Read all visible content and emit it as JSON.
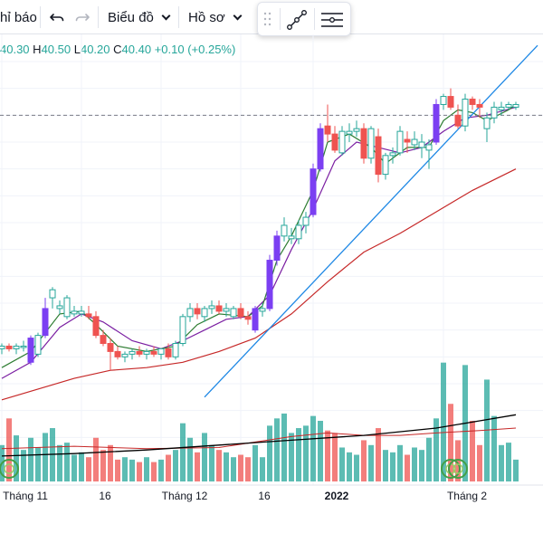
{
  "toolbar": {
    "indicators_label": "hỉ báo",
    "chart_type_label": "Biểu đồ",
    "profile_label": "Hồ sơ"
  },
  "legend": {
    "open_key": "",
    "open": "40.30",
    "high_key": "H",
    "high": "40.50",
    "low_key": "L",
    "low": "40.20",
    "close_key": "C",
    "close": "40.40",
    "change": "+0.10 (+0.25%)"
  },
  "icons": [
    "undo-icon",
    "redo-icon",
    "chevron-down-icon",
    "drag-handle-icon",
    "trend-line-icon",
    "horizontal-lines-icon"
  ],
  "colors": {
    "up": "#26a69a",
    "down": "#ef5350",
    "marked": "#7b3ff2",
    "ma_fast": "#2e7d32",
    "ma_mid": "#7b1fa2",
    "ma_slow": "#c62828",
    "ma_long": "#000000",
    "trendline": "#1e88e5",
    "price_line": "#787b86",
    "volume_ma": "#c62828"
  },
  "chart_data": {
    "type": "candlestick",
    "price_scale": {
      "min": 27,
      "max": 42
    },
    "volume_scale": {
      "min": 0,
      "max": 100
    },
    "x_tick_labels": [
      {
        "index": 0,
        "label": "Tháng 11",
        "bold": false
      },
      {
        "index": 11,
        "label": "16",
        "bold": false
      },
      {
        "index": 22,
        "label": "Tháng 12",
        "bold": false
      },
      {
        "index": 33,
        "label": "16",
        "bold": false
      },
      {
        "index": 43,
        "label": "2022",
        "bold": true
      },
      {
        "index": 61,
        "label": "Tháng 2",
        "bold": false
      }
    ],
    "candles": [
      {
        "o": 31.3,
        "h": 31.5,
        "l": 31.1,
        "c": 31.4,
        "v": 30,
        "m": false
      },
      {
        "o": 31.4,
        "h": 31.5,
        "l": 31.2,
        "c": 31.3,
        "v": 52,
        "m": false
      },
      {
        "o": 31.3,
        "h": 31.5,
        "l": 31.1,
        "c": 31.4,
        "v": 38,
        "m": false
      },
      {
        "o": 31.4,
        "h": 31.6,
        "l": 31.2,
        "c": 31.4,
        "v": 26,
        "m": false
      },
      {
        "o": 30.8,
        "h": 31.8,
        "l": 30.7,
        "c": 31.7,
        "v": 36,
        "m": true
      },
      {
        "o": 31.1,
        "h": 31.9,
        "l": 31.0,
        "c": 31.8,
        "v": 28,
        "m": false
      },
      {
        "o": 31.8,
        "h": 33.2,
        "l": 31.7,
        "c": 32.8,
        "v": 40,
        "m": true
      },
      {
        "o": 33.2,
        "h": 33.6,
        "l": 32.8,
        "c": 33.5,
        "v": 44,
        "m": false
      },
      {
        "o": 32.8,
        "h": 33.1,
        "l": 32.6,
        "c": 32.9,
        "v": 30,
        "m": false
      },
      {
        "o": 32.5,
        "h": 33.3,
        "l": 32.4,
        "c": 33.2,
        "v": 32,
        "m": false
      },
      {
        "o": 32.6,
        "h": 32.9,
        "l": 32.5,
        "c": 32.7,
        "v": 22,
        "m": false
      },
      {
        "o": 32.6,
        "h": 32.9,
        "l": 32.5,
        "c": 32.7,
        "v": 24,
        "m": false
      },
      {
        "o": 32.6,
        "h": 32.9,
        "l": 32.4,
        "c": 32.5,
        "v": 20,
        "m": false
      },
      {
        "o": 32.5,
        "h": 32.7,
        "l": 31.7,
        "c": 31.8,
        "v": 36,
        "m": false
      },
      {
        "o": 31.8,
        "h": 32.0,
        "l": 31.4,
        "c": 31.5,
        "v": 26,
        "m": false
      },
      {
        "o": 31.5,
        "h": 31.7,
        "l": 30.5,
        "c": 31.2,
        "v": 30,
        "m": false
      },
      {
        "o": 31.2,
        "h": 31.4,
        "l": 30.9,
        "c": 31.0,
        "v": 18,
        "m": false
      },
      {
        "o": 31.0,
        "h": 31.2,
        "l": 30.8,
        "c": 31.1,
        "v": 20,
        "m": false
      },
      {
        "o": 31.1,
        "h": 31.3,
        "l": 30.9,
        "c": 31.2,
        "v": 18,
        "m": false
      },
      {
        "o": 31.2,
        "h": 31.4,
        "l": 31.0,
        "c": 31.1,
        "v": 16,
        "m": false
      },
      {
        "o": 31.1,
        "h": 31.3,
        "l": 30.9,
        "c": 31.2,
        "v": 20,
        "m": false
      },
      {
        "o": 31.2,
        "h": 31.4,
        "l": 31.0,
        "c": 31.1,
        "v": 16,
        "m": false
      },
      {
        "o": 31.1,
        "h": 31.3,
        "l": 30.9,
        "c": 31.3,
        "v": 18,
        "m": false
      },
      {
        "o": 31.3,
        "h": 31.5,
        "l": 30.9,
        "c": 31.0,
        "v": 22,
        "m": false
      },
      {
        "o": 31.0,
        "h": 31.6,
        "l": 30.9,
        "c": 31.5,
        "v": 26,
        "m": false
      },
      {
        "o": 31.5,
        "h": 32.6,
        "l": 31.4,
        "c": 32.5,
        "v": 48,
        "m": false
      },
      {
        "o": 32.5,
        "h": 33.0,
        "l": 32.3,
        "c": 32.8,
        "v": 36,
        "m": false
      },
      {
        "o": 32.8,
        "h": 33.0,
        "l": 32.4,
        "c": 32.6,
        "v": 24,
        "m": false
      },
      {
        "o": 32.5,
        "h": 32.9,
        "l": 32.3,
        "c": 32.8,
        "v": 40,
        "m": false
      },
      {
        "o": 32.8,
        "h": 33.1,
        "l": 32.6,
        "c": 32.9,
        "v": 30,
        "m": false
      },
      {
        "o": 32.9,
        "h": 33.1,
        "l": 32.6,
        "c": 32.7,
        "v": 26,
        "m": false
      },
      {
        "o": 32.7,
        "h": 33.0,
        "l": 32.5,
        "c": 32.8,
        "v": 24,
        "m": false
      },
      {
        "o": 32.5,
        "h": 32.9,
        "l": 32.4,
        "c": 32.8,
        "v": 20,
        "m": false
      },
      {
        "o": 32.8,
        "h": 33.0,
        "l": 32.4,
        "c": 32.5,
        "v": 22,
        "m": false
      },
      {
        "o": 32.5,
        "h": 32.7,
        "l": 32.2,
        "c": 32.4,
        "v": 20,
        "m": false
      },
      {
        "o": 32.0,
        "h": 32.9,
        "l": 31.9,
        "c": 32.8,
        "v": 30,
        "m": true
      },
      {
        "o": 32.7,
        "h": 33.0,
        "l": 32.5,
        "c": 32.8,
        "v": 20,
        "m": false
      },
      {
        "o": 32.8,
        "h": 34.8,
        "l": 32.7,
        "c": 34.6,
        "v": 46,
        "m": true
      },
      {
        "o": 34.6,
        "h": 35.7,
        "l": 34.4,
        "c": 35.5,
        "v": 52,
        "m": true
      },
      {
        "o": 35.5,
        "h": 36.2,
        "l": 35.3,
        "c": 35.9,
        "v": 56,
        "m": false
      },
      {
        "o": 35.4,
        "h": 35.8,
        "l": 35.2,
        "c": 35.5,
        "v": 40,
        "m": false
      },
      {
        "o": 35.4,
        "h": 36.1,
        "l": 35.2,
        "c": 35.9,
        "v": 44,
        "m": false
      },
      {
        "o": 35.9,
        "h": 36.4,
        "l": 35.6,
        "c": 36.2,
        "v": 46,
        "m": false
      },
      {
        "o": 36.3,
        "h": 38.2,
        "l": 36.2,
        "c": 38.0,
        "v": 54,
        "m": true
      },
      {
        "o": 38.0,
        "h": 39.7,
        "l": 37.9,
        "c": 39.5,
        "v": 50,
        "m": true
      },
      {
        "o": 39.6,
        "h": 40.4,
        "l": 39.0,
        "c": 39.3,
        "v": 42,
        "m": false
      },
      {
        "o": 39.3,
        "h": 39.6,
        "l": 38.6,
        "c": 38.7,
        "v": 40,
        "m": false
      },
      {
        "o": 38.6,
        "h": 39.6,
        "l": 38.5,
        "c": 39.4,
        "v": 28,
        "m": false
      },
      {
        "o": 39.3,
        "h": 39.7,
        "l": 39.0,
        "c": 39.4,
        "v": 24,
        "m": false
      },
      {
        "o": 39.4,
        "h": 39.8,
        "l": 39.2,
        "c": 39.5,
        "v": 22,
        "m": false
      },
      {
        "o": 39.5,
        "h": 39.7,
        "l": 38.2,
        "c": 38.4,
        "v": 34,
        "m": false
      },
      {
        "o": 38.4,
        "h": 39.6,
        "l": 38.2,
        "c": 39.5,
        "v": 30,
        "m": false
      },
      {
        "o": 39.2,
        "h": 39.5,
        "l": 37.5,
        "c": 37.8,
        "v": 44,
        "m": false
      },
      {
        "o": 37.8,
        "h": 38.6,
        "l": 37.6,
        "c": 38.5,
        "v": 26,
        "m": false
      },
      {
        "o": 38.5,
        "h": 38.8,
        "l": 38.2,
        "c": 38.6,
        "v": 24,
        "m": false
      },
      {
        "o": 38.6,
        "h": 39.6,
        "l": 38.5,
        "c": 39.4,
        "v": 30,
        "m": false
      },
      {
        "o": 39.1,
        "h": 39.4,
        "l": 38.6,
        "c": 39.0,
        "v": 22,
        "m": false
      },
      {
        "o": 38.9,
        "h": 39.4,
        "l": 38.7,
        "c": 39.1,
        "v": 28,
        "m": false
      },
      {
        "o": 38.8,
        "h": 39.3,
        "l": 38.4,
        "c": 39.0,
        "v": 26,
        "m": false
      },
      {
        "o": 38.7,
        "h": 39.1,
        "l": 38.0,
        "c": 38.9,
        "v": 36,
        "m": false
      },
      {
        "o": 39.0,
        "h": 40.6,
        "l": 38.9,
        "c": 40.4,
        "v": 52,
        "m": true
      },
      {
        "o": 40.4,
        "h": 40.8,
        "l": 40.2,
        "c": 40.7,
        "v": 98,
        "m": false
      },
      {
        "o": 40.7,
        "h": 41.0,
        "l": 40.2,
        "c": 40.3,
        "v": 64,
        "m": false
      },
      {
        "o": 40.0,
        "h": 40.4,
        "l": 39.5,
        "c": 39.6,
        "v": 34,
        "m": false
      },
      {
        "o": 39.6,
        "h": 40.8,
        "l": 39.4,
        "c": 40.6,
        "v": 96,
        "m": false
      },
      {
        "o": 40.6,
        "h": 40.7,
        "l": 40.2,
        "c": 40.4,
        "v": 50,
        "m": false
      },
      {
        "o": 40.4,
        "h": 40.6,
        "l": 39.9,
        "c": 40.3,
        "v": 30,
        "m": false
      },
      {
        "o": 39.5,
        "h": 40.1,
        "l": 39.0,
        "c": 39.9,
        "v": 84,
        "m": false
      },
      {
        "o": 39.9,
        "h": 40.5,
        "l": 39.7,
        "c": 40.3,
        "v": 54,
        "m": false
      },
      {
        "o": 40.2,
        "h": 40.5,
        "l": 40.0,
        "c": 40.3,
        "v": 30,
        "m": false
      },
      {
        "o": 40.3,
        "h": 40.5,
        "l": 40.2,
        "c": 40.4,
        "v": 32,
        "m": false
      },
      {
        "o": 40.3,
        "h": 40.5,
        "l": 40.2,
        "c": 40.4,
        "v": 18,
        "m": false
      }
    ],
    "ma_fast": [
      [
        0,
        30.6
      ],
      [
        4,
        31.2
      ],
      [
        8,
        32.6
      ],
      [
        11,
        32.7
      ],
      [
        13,
        32.2
      ],
      [
        16,
        31.4
      ],
      [
        20,
        31.2
      ],
      [
        24,
        31.4
      ],
      [
        27,
        32.2
      ],
      [
        30,
        32.6
      ],
      [
        34,
        32.5
      ],
      [
        36,
        32.9
      ],
      [
        38,
        34.6
      ],
      [
        40,
        35.5
      ],
      [
        43,
        37.2
      ],
      [
        45,
        39.0
      ],
      [
        48,
        39.3
      ],
      [
        51,
        38.8
      ],
      [
        53,
        38.2
      ],
      [
        56,
        38.8
      ],
      [
        59,
        38.8
      ],
      [
        61,
        39.8
      ],
      [
        63,
        40.2
      ],
      [
        65,
        40.1
      ],
      [
        67,
        39.8
      ],
      [
        70,
        40.2
      ],
      [
        71,
        40.4
      ]
    ],
    "ma_mid": [
      [
        0,
        30.2
      ],
      [
        4,
        30.8
      ],
      [
        8,
        32.1
      ],
      [
        11,
        32.6
      ],
      [
        14,
        32.3
      ],
      [
        18,
        31.6
      ],
      [
        22,
        31.3
      ],
      [
        25,
        31.6
      ],
      [
        28,
        32.0
      ],
      [
        31,
        32.4
      ],
      [
        34,
        32.5
      ],
      [
        37,
        33.3
      ],
      [
        40,
        35.0
      ],
      [
        43,
        36.5
      ],
      [
        46,
        38.3
      ],
      [
        49,
        39.0
      ],
      [
        52,
        38.8
      ],
      [
        55,
        38.6
      ],
      [
        58,
        38.8
      ],
      [
        61,
        39.4
      ],
      [
        64,
        39.9
      ],
      [
        67,
        40.0
      ],
      [
        71,
        40.3
      ]
    ],
    "ma_slow": [
      [
        0,
        29.4
      ],
      [
        5,
        29.8
      ],
      [
        10,
        30.2
      ],
      [
        15,
        30.5
      ],
      [
        20,
        30.6
      ],
      [
        25,
        30.8
      ],
      [
        30,
        31.2
      ],
      [
        35,
        31.7
      ],
      [
        40,
        32.6
      ],
      [
        45,
        33.8
      ],
      [
        50,
        34.9
      ],
      [
        55,
        35.6
      ],
      [
        60,
        36.4
      ],
      [
        65,
        37.2
      ],
      [
        71,
        38.0
      ]
    ],
    "ma_long": [
      [
        0,
        21
      ],
      [
        10,
        23
      ],
      [
        20,
        26
      ],
      [
        30,
        30
      ],
      [
        40,
        34
      ],
      [
        50,
        38
      ],
      [
        60,
        44
      ],
      [
        66,
        50
      ],
      [
        71,
        55
      ]
    ],
    "volume_ma": [
      [
        0,
        27
      ],
      [
        10,
        29
      ],
      [
        20,
        27
      ],
      [
        30,
        28
      ],
      [
        40,
        37
      ],
      [
        45,
        40
      ],
      [
        50,
        38
      ],
      [
        55,
        38
      ],
      [
        60,
        40
      ],
      [
        66,
        42
      ],
      [
        71,
        44
      ]
    ],
    "trendline": {
      "from": [
        28,
        29.5
      ],
      "to": [
        74,
        42.6
      ]
    },
    "last_price_line": 40.0,
    "signal_markers": [
      0,
      61,
      62
    ]
  }
}
